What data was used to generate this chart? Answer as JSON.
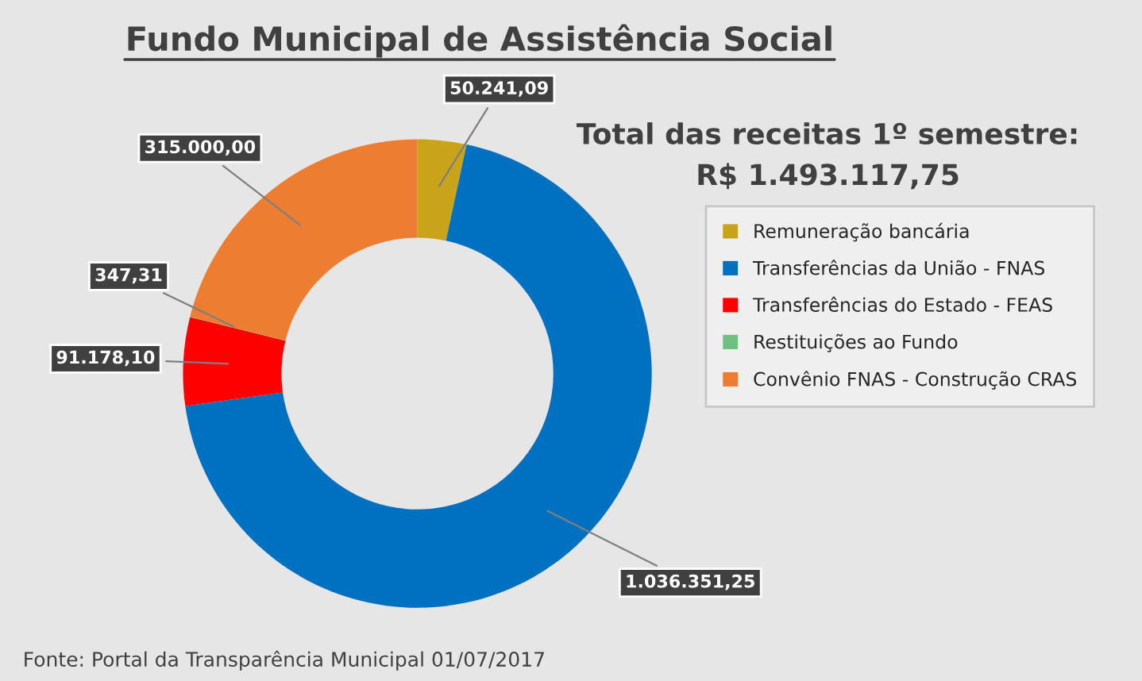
{
  "chart_data": {
    "type": "donut",
    "title": "Fundo Municipal de Assistência Social",
    "categories": [
      "Remuneração bancária",
      "Transferências da União - FNAS",
      "Transferências do Estado - FEAS",
      "Restituições ao Fundo",
      "Convênio FNAS - Construção CRAS"
    ],
    "values": [
      50241.09,
      1036351.25,
      91178.1,
      347.31,
      315000.0
    ],
    "value_labels": [
      "50.241,09",
      "1.036.351,25",
      "91.178,10",
      "347,31",
      "315.000,00"
    ],
    "colors": [
      "#c9a31a",
      "#0070c0",
      "#ff0000",
      "#70c080",
      "#ed7d31"
    ],
    "annotations": [
      "Total das receitas 1º semestre:",
      "R$ 1.493.117,75",
      "Fonte: Portal da Transparência Municipal 01/07/2017"
    ],
    "legend": "right"
  }
}
